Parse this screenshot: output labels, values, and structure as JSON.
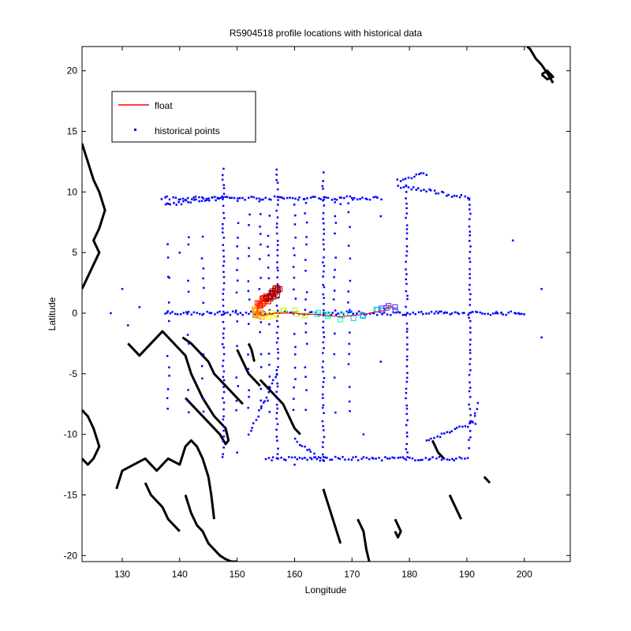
{
  "chart_data": {
    "type": "scatter",
    "title": "R5904518 profile locations with historical data",
    "xlabel": "Longitude",
    "ylabel": "Latitude",
    "xlim": [
      123,
      208
    ],
    "ylim": [
      -20.5,
      22
    ],
    "xticks": [
      130,
      140,
      150,
      160,
      170,
      180,
      190,
      200
    ],
    "yticks": [
      -20,
      -15,
      -10,
      -5,
      0,
      5,
      10,
      15,
      20
    ],
    "grid": false,
    "legend": {
      "position": "top-left",
      "entries": [
        {
          "label": "float",
          "color": "#ff0000",
          "marker": "line"
        },
        {
          "label": "historical points",
          "color": "#0000ff",
          "marker": "dot"
        }
      ]
    },
    "colors": {
      "historical": "#0000ff",
      "coastline": "#000000",
      "float_colormap": [
        "#3030ff",
        "#00c0ff",
        "#00ffc0",
        "#c0ff00",
        "#ffff00",
        "#ffa000",
        "#ff3000",
        "#a00000"
      ]
    },
    "historical_lines": [
      {
        "x": [
          147.6,
          147.6
        ],
        "y": [
          -12,
          12
        ]
      },
      {
        "x": [
          157.0,
          157.0
        ],
        "y": [
          -12,
          12
        ]
      },
      {
        "x": [
          165.0,
          165.0
        ],
        "y": [
          -12,
          11.5
        ]
      },
      {
        "x": [
          179.5,
          179.5
        ],
        "y": [
          -12,
          10.5
        ]
      },
      {
        "x": [
          190.5,
          190.5
        ],
        "y": [
          -11,
          9.5
        ]
      },
      {
        "x": [
          137.5,
          200
        ],
        "y": [
          0,
          0
        ]
      },
      {
        "x": [
          137,
          175
        ],
        "y": [
          9.5,
          9.5
        ]
      },
      {
        "x": [
          155,
          190
        ],
        "y": [
          -12,
          -12
        ]
      },
      {
        "x": [
          183,
          191.5
        ],
        "y": [
          -10.5,
          -9
        ]
      },
      {
        "x": [
          152,
          157
        ],
        "y": [
          -10,
          -5
        ]
      },
      {
        "x": [
          160,
          165
        ],
        "y": [
          -10.5,
          -12.2
        ]
      },
      {
        "x": [
          178,
          183
        ],
        "y": [
          11,
          11.5
        ]
      },
      {
        "x": [
          178,
          190.5
        ],
        "y": [
          10.5,
          9.5
        ]
      },
      {
        "x": [
          191,
          192
        ],
        "y": [
          -9,
          -7.5
        ]
      },
      {
        "x": [
          137.5,
          147.5
        ],
        "y": [
          9,
          9.5
        ]
      }
    ],
    "historical_columns": [
      138,
      141.5,
      144,
      150,
      152,
      154,
      155.5,
      160,
      162,
      167,
      169.5
    ],
    "historical_column_range": [
      -8,
      10
    ],
    "historical_extra": [
      [
        185,
        0
      ],
      [
        186,
        0
      ],
      [
        195,
        0
      ],
      [
        196,
        0
      ],
      [
        199,
        0
      ],
      [
        203,
        -2
      ],
      [
        203,
        2
      ],
      [
        198,
        6
      ],
      [
        175,
        8
      ],
      [
        170,
        9.5
      ],
      [
        168,
        9
      ],
      [
        172,
        0
      ],
      [
        150,
        -11.5
      ],
      [
        160,
        -12.5
      ],
      [
        140,
        5
      ],
      [
        130,
        2
      ],
      [
        133,
        0.5
      ],
      [
        128,
        0
      ],
      [
        131,
        -1
      ],
      [
        138,
        3
      ],
      [
        175,
        -4
      ],
      [
        172,
        -10
      ]
    ],
    "float_track": {
      "x": [
        177.5,
        176.5,
        175.5,
        174,
        172,
        170,
        168,
        166,
        164,
        162,
        160,
        158,
        156.5,
        155.5,
        154.5,
        154,
        153.5,
        153.5,
        154,
        154.5,
        155,
        155.5,
        156,
        156.5,
        157
      ],
      "y": [
        0.4,
        0.6,
        0.2,
        0.1,
        -0.1,
        -0.2,
        -0.3,
        -0.2,
        -0.1,
        -0.1,
        0.0,
        0.0,
        0.0,
        -0.1,
        -0.2,
        -0.1,
        0.0,
        0.4,
        0.8,
        1.0,
        1.2,
        1.4,
        1.5,
        1.7,
        1.9
      ]
    },
    "coastlines": [
      {
        "x": [
          123,
          124,
          125,
          126,
          127,
          126,
          125,
          126,
          125,
          124,
          123
        ],
        "y": [
          14,
          12.5,
          11,
          10,
          8.5,
          7,
          6,
          5,
          4,
          3,
          2
        ]
      },
      {
        "x": [
          123,
          124,
          125,
          126,
          125,
          124,
          123
        ],
        "y": [
          -8,
          -8.5,
          -9.5,
          -11,
          -12,
          -12.5,
          -12
        ]
      },
      {
        "x": [
          129,
          130,
          132,
          134,
          135,
          136,
          138,
          140,
          141,
          142,
          143,
          144,
          145,
          145.5,
          146
        ],
        "y": [
          -14.5,
          -13,
          -12.5,
          -12,
          -12.5,
          -13,
          -12,
          -12.5,
          -11,
          -10.5,
          -11,
          -12,
          -13.5,
          -15,
          -17
        ]
      },
      {
        "x": [
          134,
          135,
          136,
          137,
          138,
          139,
          140
        ],
        "y": [
          -14,
          -15,
          -15.5,
          -16,
          -17,
          -17.5,
          -18
        ]
      },
      {
        "x": [
          141,
          142,
          143,
          144,
          145,
          146,
          147,
          148,
          149,
          150
        ],
        "y": [
          -15,
          -16.5,
          -17.5,
          -18,
          -19,
          -19.5,
          -20,
          -20.3,
          -20.5,
          -20.5
        ]
      },
      {
        "x": [
          131,
          133,
          135,
          137,
          138,
          140,
          141,
          142,
          143,
          144,
          146,
          148,
          148.5,
          148,
          147,
          145,
          144,
          143,
          141
        ],
        "y": [
          -2.5,
          -3.5,
          -2.5,
          -1.5,
          -2,
          -3,
          -3.5,
          -5,
          -6,
          -7,
          -8.5,
          -9.5,
          -10.5,
          -10.8,
          -10,
          -9,
          -8.5,
          -8,
          -7
        ]
      },
      {
        "x": [
          140.5,
          142,
          143,
          144,
          145,
          146,
          147,
          148,
          149,
          150,
          151
        ],
        "y": [
          -2,
          -2.5,
          -3,
          -3.5,
          -4,
          -5,
          -5.5,
          -6,
          -6.5,
          -7,
          -7.5
        ]
      },
      {
        "x": [
          150,
          151,
          152,
          153,
          154
        ],
        "y": [
          -3,
          -4,
          -5,
          -5.5,
          -6
        ]
      },
      {
        "x": [
          152,
          152.5,
          153
        ],
        "y": [
          -2.5,
          -3,
          -4
        ]
      },
      {
        "x": [
          154,
          155,
          156,
          157,
          158,
          159,
          160,
          161
        ],
        "y": [
          -5.5,
          -6,
          -6.5,
          -7,
          -7.5,
          -8.5,
          -9.5,
          -10
        ]
      },
      {
        "x": [
          165,
          166,
          167,
          168
        ],
        "y": [
          -14.5,
          -16,
          -17.5,
          -19
        ]
      },
      {
        "x": [
          171,
          172,
          172.5,
          173
        ],
        "y": [
          -17,
          -18,
          -19.5,
          -20.5
        ]
      },
      {
        "x": [
          177.5,
          178,
          178.5,
          178,
          177.5
        ],
        "y": [
          -17,
          -17.5,
          -18,
          -18.5,
          -18
        ]
      },
      {
        "x": [
          187,
          188,
          189
        ],
        "y": [
          -15,
          -16,
          -17
        ]
      },
      {
        "x": [
          193,
          194
        ],
        "y": [
          -13.5,
          -14
        ]
      },
      {
        "x": [
          200.5,
          201,
          202,
          203,
          204,
          205
        ],
        "y": [
          22,
          21.8,
          21,
          20.5,
          19.8,
          19
        ]
      },
      {
        "x": [
          203,
          204,
          205,
          204,
          203
        ],
        "y": [
          19.7,
          19.3,
          19.5,
          20,
          19.7
        ]
      },
      {
        "x": [
          184,
          185,
          186
        ],
        "y": [
          -10.5,
          -11.5,
          -12
        ]
      }
    ]
  }
}
